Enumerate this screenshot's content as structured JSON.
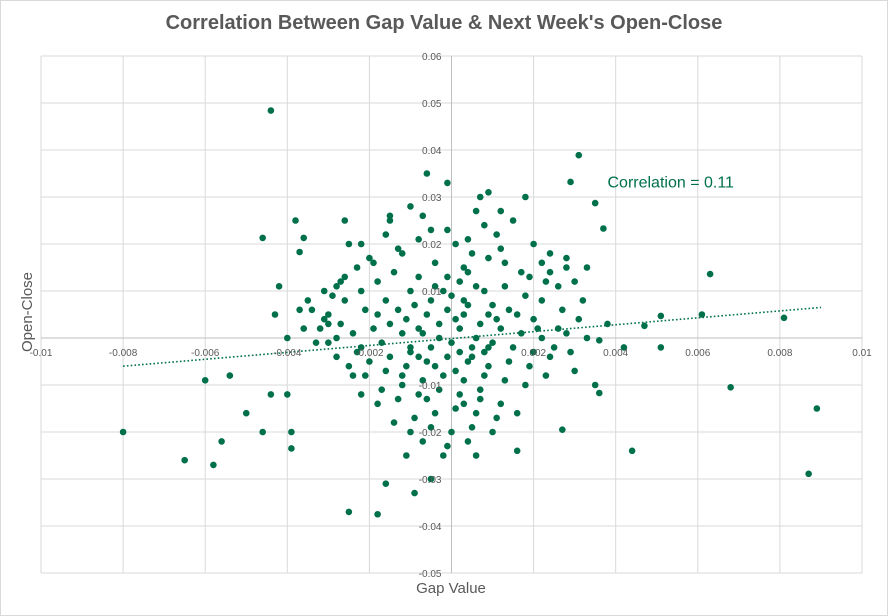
{
  "chart_data": {
    "type": "scatter",
    "title": "Correlation Between Gap Value & Next Week's Open-Close",
    "xlabel": "Gap Value",
    "ylabel": "Open-Close",
    "xlim": [
      -0.01,
      0.01
    ],
    "ylim": [
      -0.05,
      0.06
    ],
    "x_ticks": [
      -0.01,
      -0.008,
      -0.006,
      -0.004,
      -0.002,
      0,
      0.002,
      0.004,
      0.006,
      0.008,
      0.01
    ],
    "x_tick_labels": [
      "-0.01",
      "-0.008",
      "-0.006",
      "-0.004",
      "-0.002",
      "0",
      "0.002",
      "0.004",
      "0.006",
      "0.008",
      "0.01"
    ],
    "y_ticks": [
      -0.05,
      -0.04,
      -0.03,
      -0.02,
      -0.01,
      0,
      0.01,
      0.02,
      0.03,
      0.04,
      0.05,
      0.06
    ],
    "y_tick_labels": [
      "-0.05",
      "-0.04",
      "-0.03",
      "-0.02",
      "-0.01",
      "0",
      "0.01",
      "0.02",
      "0.03",
      "0.04",
      "0.05",
      "0.06"
    ],
    "grid": true,
    "point_color": "#00704A",
    "trendline": {
      "style": "dotted",
      "color": "#00704A",
      "start": [
        -0.008,
        -0.006
      ],
      "end": [
        0.009,
        0.0065
      ]
    },
    "annotation": {
      "text": "Correlation = 0.11",
      "at": [
        0.0038,
        0.032
      ],
      "color": "#00704A"
    },
    "series": [
      {
        "name": "Gap Value vs Open-Close",
        "points": [
          [
            -0.0044,
            0.0484
          ],
          [
            0.0031,
            0.0389
          ],
          [
            0.0029,
            0.0332
          ],
          [
            0.0035,
            0.0287
          ],
          [
            0.0037,
            0.0233
          ],
          [
            0.0063,
            0.0136
          ],
          [
            0.0061,
            0.005
          ],
          [
            0.0081,
            0.0043
          ],
          [
            0.0051,
            0.0047
          ],
          [
            0.0047,
            0.0026
          ],
          [
            0.0042,
            -0.002
          ],
          [
            0.0051,
            -0.002
          ],
          [
            0.0036,
            -0.0005
          ],
          [
            0.0038,
            0.003
          ],
          [
            0.0068,
            -0.0105
          ],
          [
            0.0089,
            -0.015
          ],
          [
            0.0087,
            -0.0289
          ],
          [
            0.0044,
            -0.024
          ],
          [
            0.0035,
            -0.01
          ],
          [
            0.0036,
            -0.0117
          ],
          [
            0.0027,
            -0.0195
          ],
          [
            0.003,
            -0.007
          ],
          [
            -0.008,
            -0.02
          ],
          [
            -0.0065,
            -0.026
          ],
          [
            -0.0058,
            -0.027
          ],
          [
            -0.0056,
            -0.022
          ],
          [
            -0.005,
            -0.016
          ],
          [
            -0.0046,
            -0.02
          ],
          [
            -0.0044,
            -0.012
          ],
          [
            -0.004,
            -0.012
          ],
          [
            -0.0039,
            -0.02
          ],
          [
            -0.0039,
            -0.0235
          ],
          [
            -0.0054,
            -0.008
          ],
          [
            -0.006,
            -0.009
          ],
          [
            -0.0046,
            0.0213
          ],
          [
            -0.0038,
            0.025
          ],
          [
            -0.0036,
            0.0213
          ],
          [
            -0.0037,
            0.0183
          ],
          [
            -0.0042,
            0.011
          ],
          [
            -0.0043,
            0.005
          ],
          [
            -0.0037,
            0.006
          ],
          [
            -0.0035,
            0.008
          ],
          [
            -0.0036,
            0.002
          ],
          [
            -0.004,
            0.0
          ],
          [
            -0.0026,
            0.025
          ],
          [
            -0.0025,
            0.02
          ],
          [
            -0.0026,
            0.013
          ],
          [
            -0.0028,
            0.011
          ],
          [
            -0.0031,
            0.004
          ],
          [
            -0.003,
            -0.001
          ],
          [
            -0.0028,
            -0.004
          ],
          [
            -0.0024,
            -0.008
          ],
          [
            -0.0025,
            -0.037
          ],
          [
            -0.0018,
            -0.0375
          ],
          [
            -0.0016,
            -0.031
          ],
          [
            -0.0009,
            -0.033
          ],
          [
            -0.0011,
            -0.025
          ],
          [
            -0.0005,
            -0.03
          ],
          [
            0.0006,
            -0.025
          ],
          [
            0.0016,
            -0.024
          ],
          [
            -0.0002,
            -0.025
          ],
          [
            0.0033,
            0.015
          ],
          [
            0.0028,
            0.017
          ],
          [
            0.0024,
            0.018
          ],
          [
            0.0022,
            0.016
          ],
          [
            0.0018,
            0.03
          ],
          [
            0.0009,
            0.031
          ],
          [
            0.0007,
            0.03
          ],
          [
            0.0006,
            0.027
          ],
          [
            0.0012,
            0.027
          ],
          [
            -0.0001,
            0.033
          ],
          [
            -0.0006,
            0.035
          ],
          [
            -0.001,
            0.028
          ],
          [
            -0.0015,
            0.026
          ],
          [
            -0.0015,
            0.025
          ],
          [
            -0.0022,
            0.02
          ],
          [
            -0.0019,
            0.016
          ],
          [
            0.0015,
            0.025
          ],
          [
            0.0008,
            0.024
          ],
          [
            0.0011,
            0.022
          ],
          [
            0.0004,
            0.021
          ],
          [
            0.0024,
            0.014
          ],
          [
            0.0019,
            0.013
          ],
          [
            0.0001,
            0.02
          ],
          [
            -0.0001,
            0.023
          ],
          [
            -0.0005,
            0.023
          ],
          [
            -0.0008,
            0.021
          ],
          [
            -0.0012,
            0.018
          ],
          [
            -0.0004,
            0.016
          ],
          [
            0.0003,
            0.015
          ],
          [
            -0.0008,
            0.013
          ],
          [
            -0.0014,
            0.014
          ],
          [
            -0.0018,
            0.012
          ],
          [
            -0.0022,
            0.01
          ],
          [
            -0.0026,
            0.008
          ],
          [
            -0.003,
            0.005
          ],
          [
            -0.0032,
            0.002
          ],
          [
            -0.0021,
            0.006
          ],
          [
            -0.0016,
            0.008
          ],
          [
            -0.001,
            0.01
          ],
          [
            -0.0004,
            0.011
          ],
          [
            0.0002,
            0.012
          ],
          [
            0.0008,
            0.01
          ],
          [
            0.0013,
            0.011
          ],
          [
            0.0018,
            0.009
          ],
          [
            0.0022,
            0.008
          ],
          [
            0.0027,
            0.006
          ],
          [
            0.0031,
            0.004
          ],
          [
            0.0026,
            0.002
          ],
          [
            0.002,
            0.004
          ],
          [
            0.0014,
            0.006
          ],
          [
            0.0009,
            0.005
          ],
          [
            0.0004,
            0.007
          ],
          [
            -0.0001,
            0.006
          ],
          [
            -0.0006,
            0.005
          ],
          [
            -0.0011,
            0.004
          ],
          [
            -0.0015,
            0.003
          ],
          [
            -0.0019,
            0.002
          ],
          [
            -0.0024,
            0.001
          ],
          [
            -0.0028,
            0.0
          ],
          [
            -0.0022,
            -0.002
          ],
          [
            -0.0017,
            -0.001
          ],
          [
            -0.0012,
            0.001
          ],
          [
            -0.0008,
            0.002
          ],
          [
            -0.0003,
            0.003
          ],
          [
            0.0002,
            0.002
          ],
          [
            0.0007,
            0.003
          ],
          [
            0.0012,
            0.002
          ],
          [
            0.0017,
            0.001
          ],
          [
            0.0022,
            0.0
          ],
          [
            0.0025,
            -0.002
          ],
          [
            0.002,
            -0.003
          ],
          [
            0.0015,
            -0.002
          ],
          [
            0.001,
            -0.001
          ],
          [
            0.0005,
            -0.002
          ],
          [
            0.0,
            -0.001
          ],
          [
            -0.0005,
            -0.002
          ],
          [
            -0.001,
            -0.003
          ],
          [
            -0.0015,
            -0.004
          ],
          [
            -0.002,
            -0.005
          ],
          [
            -0.0025,
            -0.006
          ],
          [
            -0.0021,
            -0.008
          ],
          [
            -0.0016,
            -0.007
          ],
          [
            -0.0011,
            -0.006
          ],
          [
            -0.0006,
            -0.005
          ],
          [
            -0.0001,
            -0.004
          ],
          [
            0.0004,
            -0.005
          ],
          [
            0.0009,
            -0.006
          ],
          [
            0.0014,
            -0.005
          ],
          [
            0.0019,
            -0.006
          ],
          [
            0.0023,
            -0.008
          ],
          [
            0.0018,
            -0.01
          ],
          [
            0.0013,
            -0.009
          ],
          [
            0.0008,
            -0.008
          ],
          [
            0.0003,
            -0.009
          ],
          [
            -0.0002,
            -0.008
          ],
          [
            -0.0007,
            -0.009
          ],
          [
            -0.0012,
            -0.01
          ],
          [
            -0.0017,
            -0.011
          ],
          [
            -0.0022,
            -0.012
          ],
          [
            -0.0018,
            -0.014
          ],
          [
            -0.0013,
            -0.013
          ],
          [
            -0.0008,
            -0.012
          ],
          [
            -0.0003,
            -0.011
          ],
          [
            0.0002,
            -0.012
          ],
          [
            0.0007,
            -0.013
          ],
          [
            0.0012,
            -0.014
          ],
          [
            0.0016,
            -0.016
          ],
          [
            0.0011,
            -0.017
          ],
          [
            0.0006,
            -0.016
          ],
          [
            0.0001,
            -0.015
          ],
          [
            -0.0004,
            -0.016
          ],
          [
            -0.0009,
            -0.017
          ],
          [
            -0.0014,
            -0.018
          ],
          [
            -0.001,
            -0.02
          ],
          [
            -0.0005,
            -0.019
          ],
          [
            0.0,
            -0.02
          ],
          [
            0.0005,
            -0.019
          ],
          [
            0.001,
            -0.02
          ],
          [
            0.0004,
            -0.022
          ],
          [
            -0.0001,
            -0.023
          ],
          [
            -0.0007,
            -0.022
          ],
          [
            0.0,
            0.009
          ],
          [
            0.0003,
            0.008
          ],
          [
            -0.0002,
            0.01
          ],
          [
            0.0006,
            0.011
          ],
          [
            -0.0005,
            0.008
          ],
          [
            0.0001,
            0.004
          ],
          [
            -0.0003,
            0.0
          ],
          [
            0.0002,
            -0.003
          ],
          [
            -0.0004,
            -0.006
          ],
          [
            0.0001,
            -0.007
          ],
          [
            0.0005,
            -0.004
          ],
          [
            -0.0007,
            0.001
          ],
          [
            0.0006,
            0.0
          ],
          [
            -0.0008,
            -0.004
          ],
          [
            0.0008,
            -0.003
          ],
          [
            0.0003,
            0.005
          ],
          [
            -0.0001,
            0.013
          ],
          [
            0.0004,
            0.014
          ],
          [
            -0.0009,
            0.007
          ],
          [
            0.001,
            0.007
          ],
          [
            -0.0013,
            0.006
          ],
          [
            0.0011,
            0.004
          ],
          [
            -0.0012,
            -0.008
          ],
          [
            0.0007,
            -0.011
          ],
          [
            -0.0006,
            -0.013
          ],
          [
            0.0003,
            -0.014
          ],
          [
            0.0009,
            -0.002
          ],
          [
            -0.001,
            -0.002
          ],
          [
            0.0016,
            0.005
          ],
          [
            -0.0018,
            0.005
          ],
          [
            0.0021,
            0.002
          ],
          [
            -0.0023,
            -0.003
          ],
          [
            0.0024,
            -0.004
          ],
          [
            -0.0027,
            0.003
          ],
          [
            0.0028,
            0.001
          ],
          [
            -0.003,
            0.003
          ],
          [
            0.0029,
            -0.003
          ],
          [
            -0.0033,
            -0.001
          ],
          [
            0.0033,
            0.0
          ],
          [
            0.0028,
            0.015
          ],
          [
            0.003,
            0.012
          ],
          [
            0.0026,
            0.011
          ],
          [
            -0.0034,
            0.006
          ],
          [
            -0.0029,
            0.009
          ],
          [
            -0.0027,
            0.012
          ],
          [
            -0.0031,
            0.01
          ],
          [
            0.0032,
            0.008
          ],
          [
            0.0023,
            0.012
          ],
          [
            0.0017,
            0.014
          ],
          [
            0.0013,
            0.016
          ],
          [
            -0.002,
            0.017
          ],
          [
            -0.0023,
            0.015
          ],
          [
            -0.0013,
            0.019
          ],
          [
            0.0005,
            0.018
          ],
          [
            0.0009,
            0.017
          ],
          [
            -0.0016,
            0.022
          ],
          [
            0.002,
            0.02
          ],
          [
            -0.0007,
            0.026
          ],
          [
            0.0012,
            0.019
          ]
        ]
      }
    ]
  }
}
